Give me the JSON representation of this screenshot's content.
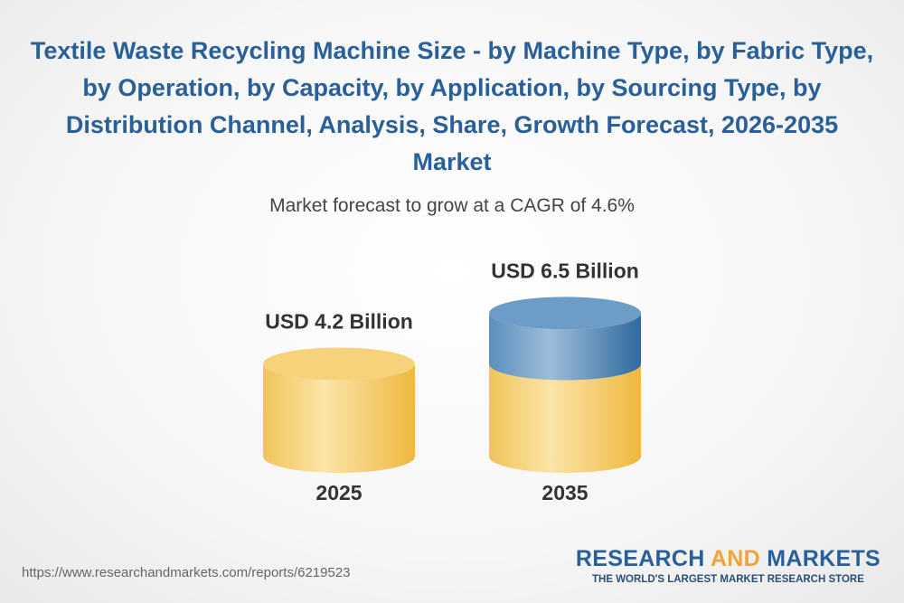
{
  "chart_data": {
    "type": "cylinder",
    "title": "Textile Waste Recycling Machine Size - by Machine Type, by Fabric Type, by Operation, by Capacity, by Application, by Sourcing Type, by Distribution Channel, Analysis, Share, Growth Forecast, 2026-2035 Market",
    "subtitle": "Market forecast to grow at a CAGR of 4.6%",
    "categories": [
      "2025",
      "2035"
    ],
    "values": [
      4.2,
      6.5
    ],
    "value_labels": [
      "USD 4.2 Billion",
      "USD 6.5 Billion"
    ],
    "color": "#f3c75a",
    "growth_color": "#3f7fb0"
  },
  "footer": {
    "url": "https://www.researchandmarkets.com/reports/6219523",
    "logo_word_1": "RESEARCH",
    "logo_word_2": "AND",
    "logo_word_3": "MARKETS",
    "tagline": "THE WORLD'S LARGEST MARKET RESEARCH STORE"
  }
}
